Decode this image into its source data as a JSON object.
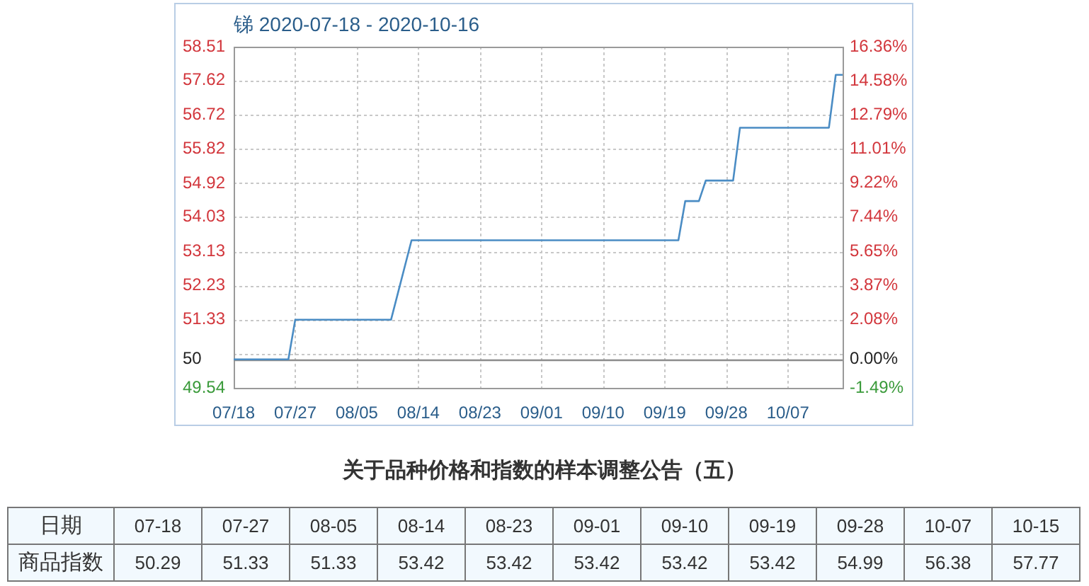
{
  "chart_data": [
    {
      "type": "line",
      "title": "锑 2020-07-18 - 2020-10-16",
      "x": [
        "2020-07-18",
        "2020-07-26",
        "2020-07-27",
        "2020-08-05",
        "2020-08-10",
        "2020-08-13",
        "2020-08-14",
        "2020-08-23",
        "2020-09-01",
        "2020-09-10",
        "2020-09-19",
        "2020-09-21",
        "2020-09-22",
        "2020-09-24",
        "2020-09-25",
        "2020-09-28",
        "2020-09-29",
        "2020-09-30",
        "2020-10-07",
        "2020-10-13",
        "2020-10-14",
        "2020-10-15"
      ],
      "series": [
        {
          "color": "#4a8cc4",
          "values": [
            50.29,
            50.29,
            51.33,
            51.33,
            51.33,
            53.42,
            53.42,
            53.42,
            53.42,
            53.42,
            53.42,
            53.42,
            54.45,
            54.45,
            54.99,
            54.99,
            54.99,
            56.38,
            56.38,
            56.38,
            57.77,
            57.77
          ]
        }
      ],
      "xlim": [
        "2020-07-18",
        "2020-10-15"
      ],
      "xticks": [
        {
          "value": "2020-07-18",
          "label": "07/18"
        },
        {
          "value": "2020-07-27",
          "label": "07/27"
        },
        {
          "value": "2020-08-05",
          "label": "08/05"
        },
        {
          "value": "2020-08-14",
          "label": "08/14"
        },
        {
          "value": "2020-08-23",
          "label": "08/23"
        },
        {
          "value": "2020-09-01",
          "label": "09/01"
        },
        {
          "value": "2020-09-10",
          "label": "09/10"
        },
        {
          "value": "2020-09-19",
          "label": "09/19"
        },
        {
          "value": "2020-09-28",
          "label": "09/28"
        },
        {
          "value": "2020-10-07",
          "label": "10/07"
        }
      ],
      "ylim": [
        49.54,
        58.51
      ],
      "yticks": [
        49.54,
        {
          "value": 50.29,
          "label": "50"
        },
        {
          "value": 50.44,
          "label": null
        },
        51.33,
        52.23,
        53.13,
        54.03,
        54.92,
        55.82,
        56.72,
        57.62,
        58.51
      ],
      "y2lim": [
        -1.49,
        16.36
      ],
      "y2ticks": [
        {
          "value": -1.49,
          "label": "-1.49%"
        },
        {
          "value": 0,
          "label": "0.00%"
        },
        {
          "value": 2.08,
          "label": "2.08%"
        },
        {
          "value": 3.87,
          "label": "3.87%"
        },
        {
          "value": 5.65,
          "label": "5.65%"
        },
        {
          "value": 7.44,
          "label": "7.44%"
        },
        {
          "value": 9.22,
          "label": "9.22%"
        },
        {
          "value": 11.01,
          "label": "11.01%"
        },
        {
          "value": 12.79,
          "label": "12.79%"
        },
        {
          "value": 14.58,
          "label": "14.58%"
        },
        {
          "value": 16.36,
          "label": "16.36%"
        }
      ],
      "ref_lines": [
        {
          "axis": "y",
          "value": 50.29,
          "color": "#8c8c8c"
        }
      ],
      "grid": true,
      "marker": "none",
      "annotations": [
        "关于品种价格和指数的样本调整公告（五）"
      ]
    },
    {
      "type": "other",
      "xlabel": "日期",
      "ylabel": "商品指数",
      "categories": [
        "07-18",
        "07-27",
        "08-05",
        "08-14",
        "08-23",
        "09-01",
        "09-10",
        "09-19",
        "09-28",
        "10-07",
        "10-15"
      ],
      "values": [
        50.29,
        51.33,
        51.33,
        53.42,
        53.42,
        53.42,
        53.42,
        53.42,
        54.99,
        56.38,
        57.77
      ],
      "data_labels": true
    }
  ]
}
